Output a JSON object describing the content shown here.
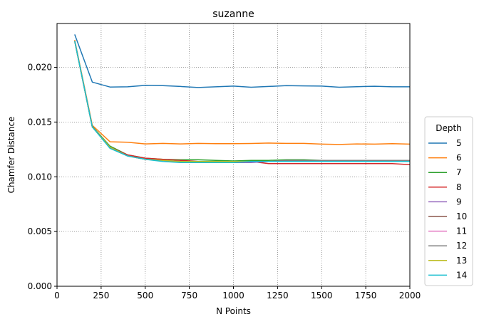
{
  "chart_data": {
    "type": "line",
    "title": "suzanne",
    "xlabel": "N Points",
    "ylabel": "Chamfer Distance",
    "xlim": [
      0,
      2000
    ],
    "ylim": [
      0,
      0.024
    ],
    "xticks": [
      0,
      250,
      500,
      750,
      1000,
      1250,
      1500,
      1750,
      2000
    ],
    "xtick_labels": [
      "0",
      "250",
      "500",
      "750",
      "1000",
      "1250",
      "1500",
      "1750",
      "2000"
    ],
    "yticks": [
      0,
      0.005,
      0.01,
      0.015,
      0.02
    ],
    "ytick_labels": [
      "0.000",
      "0.005",
      "0.010",
      "0.015",
      "0.020"
    ],
    "grid": true,
    "legend_title": "Depth",
    "legend_position": "right",
    "x": [
      100,
      200,
      300,
      400,
      500,
      600,
      700,
      800,
      900,
      1000,
      1100,
      1200,
      1300,
      1400,
      1500,
      1600,
      1700,
      1800,
      1900,
      2000
    ],
    "series": [
      {
        "name": "5",
        "color": "#1f77b4",
        "values": [
          0.023,
          0.01865,
          0.0182,
          0.01822,
          0.01835,
          0.01833,
          0.01825,
          0.01815,
          0.01822,
          0.01828,
          0.01818,
          0.01825,
          0.01832,
          0.0183,
          0.01828,
          0.01818,
          0.01823,
          0.01827,
          0.01822,
          0.01822
        ]
      },
      {
        "name": "6",
        "color": "#ff7f0e",
        "values": [
          0.0225,
          0.0147,
          0.0132,
          0.01315,
          0.013,
          0.01305,
          0.013,
          0.01305,
          0.01303,
          0.01302,
          0.01304,
          0.01308,
          0.01305,
          0.01305,
          0.01298,
          0.01295,
          0.013,
          0.01298,
          0.01302,
          0.01298
        ]
      },
      {
        "name": "7",
        "color": "#2ca02c",
        "values": [
          0.0224,
          0.0146,
          0.0128,
          0.012,
          0.0117,
          0.0116,
          0.01155,
          0.01155,
          0.0115,
          0.01145,
          0.0115,
          0.0115,
          0.01155,
          0.01155,
          0.0115,
          0.0115,
          0.0115,
          0.0115,
          0.01148,
          0.01148
        ]
      },
      {
        "name": "8",
        "color": "#d62728",
        "values": [
          0.0224,
          0.01455,
          0.0127,
          0.012,
          0.0117,
          0.0116,
          0.0115,
          0.0114,
          0.0114,
          0.0114,
          0.0114,
          0.0112,
          0.0112,
          0.0112,
          0.0112,
          0.0112,
          0.0112,
          0.0112,
          0.0112,
          0.0111
        ]
      },
      {
        "name": "9",
        "color": "#9467bd",
        "values": [
          0.0224,
          0.01455,
          0.0127,
          0.0119,
          0.0116,
          0.0115,
          0.0114,
          0.0114,
          0.0113,
          0.0113,
          0.0113,
          0.0114,
          0.0114,
          0.0114,
          0.0114,
          0.0114,
          0.0114,
          0.0114,
          0.0114,
          0.0114
        ]
      },
      {
        "name": "10",
        "color": "#8c564b",
        "values": [
          0.0224,
          0.01455,
          0.0127,
          0.0119,
          0.0116,
          0.0115,
          0.0114,
          0.0114,
          0.0113,
          0.0113,
          0.0114,
          0.0114,
          0.0114,
          0.0114,
          0.0114,
          0.0114,
          0.0114,
          0.0114,
          0.0114,
          0.0114
        ]
      },
      {
        "name": "11",
        "color": "#e377c2",
        "values": [
          0.0224,
          0.01455,
          0.0127,
          0.0119,
          0.0116,
          0.0115,
          0.0114,
          0.0114,
          0.0114,
          0.0114,
          0.0114,
          0.0114,
          0.0114,
          0.0114,
          0.0114,
          0.0114,
          0.0114,
          0.0114,
          0.0115,
          0.0115
        ]
      },
      {
        "name": "12",
        "color": "#7f7f7f",
        "values": [
          0.0224,
          0.01455,
          0.0127,
          0.0119,
          0.0116,
          0.0115,
          0.0114,
          0.0114,
          0.0114,
          0.0114,
          0.0114,
          0.0114,
          0.0115,
          0.0115,
          0.0115,
          0.0115,
          0.0115,
          0.0115,
          0.0115,
          0.0115
        ]
      },
      {
        "name": "13",
        "color": "#bcbd22",
        "values": [
          0.0224,
          0.01455,
          0.0127,
          0.0119,
          0.0116,
          0.0115,
          0.0114,
          0.0114,
          0.0114,
          0.0114,
          0.0114,
          0.0114,
          0.0114,
          0.0114,
          0.0114,
          0.0114,
          0.0114,
          0.0114,
          0.0114,
          0.0114
        ]
      },
      {
        "name": "14",
        "color": "#17becf",
        "values": [
          0.0224,
          0.01455,
          0.0126,
          0.0119,
          0.0116,
          0.0114,
          0.0113,
          0.0113,
          0.0113,
          0.0113,
          0.0114,
          0.0114,
          0.0114,
          0.0114,
          0.0114,
          0.0114,
          0.0114,
          0.0114,
          0.0114,
          0.0114
        ]
      }
    ]
  }
}
